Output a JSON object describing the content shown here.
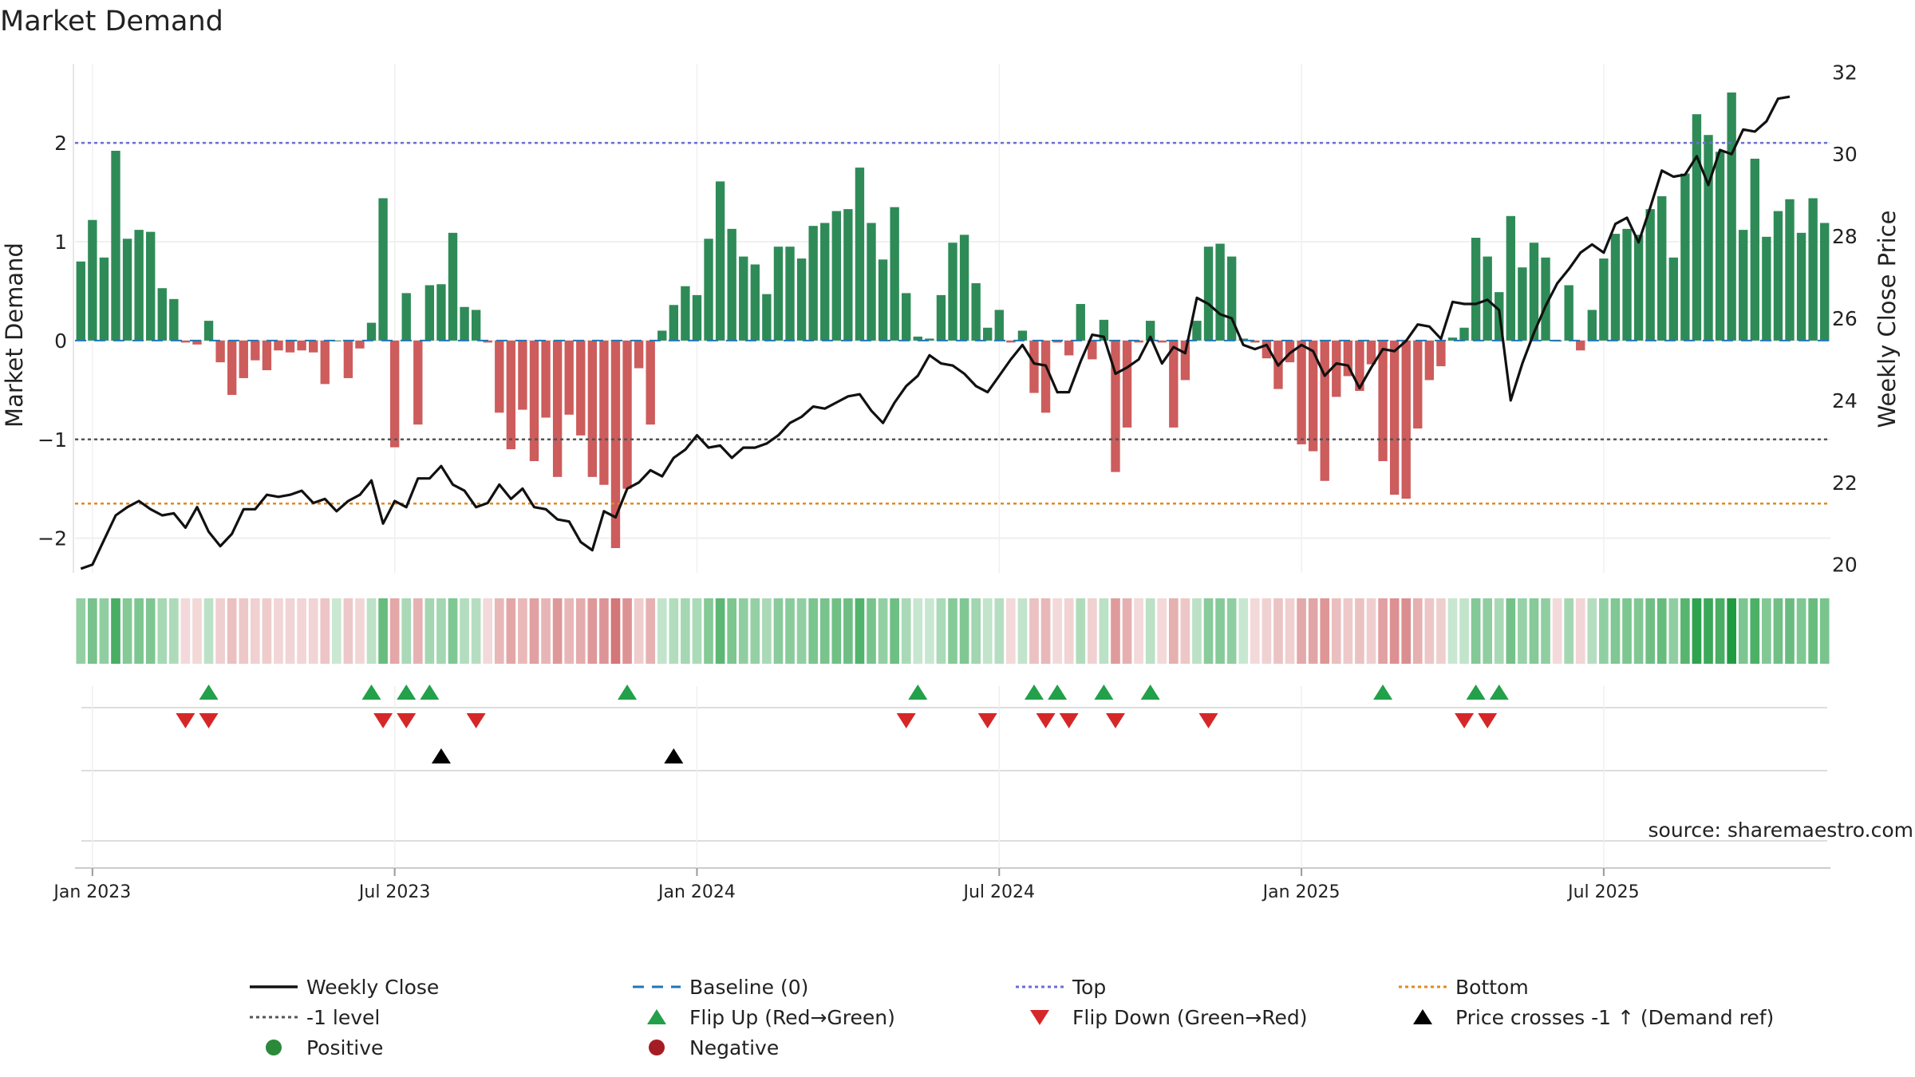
{
  "chart_data": {
    "type": "bar",
    "title": "Market Demand",
    "ylabel": "Market Demand",
    "y2label": "Weekly Close Price",
    "ylim": [
      -2.35,
      2.8
    ],
    "y2lim": [
      19.8,
      32.2
    ],
    "yticks": [
      2,
      1,
      0,
      -1,
      -2
    ],
    "ytick_labels": [
      "2",
      "1",
      "0",
      "−1",
      "−2"
    ],
    "y2ticks": [
      32,
      30,
      28,
      26,
      24,
      22,
      20
    ],
    "y2tick_labels": [
      "32",
      "30",
      "28",
      "26",
      "24",
      "22",
      "20"
    ],
    "reference_lines": {
      "top": 2,
      "minus_one": -1,
      "bottom": -1.65,
      "baseline": 0
    },
    "x_tick_labels": [
      "Jan 2023",
      "Jul 2023",
      "Jan 2024",
      "Jul 2024",
      "Jan 2025",
      "Jul 2025"
    ],
    "x_tick_weeks": [
      1,
      27,
      53,
      79,
      105,
      131
    ],
    "series": [
      {
        "name": "Market Demand",
        "values": [
          0.8,
          1.22,
          0.84,
          1.92,
          1.03,
          1.12,
          1.1,
          0.53,
          0.42,
          -0.02,
          -0.04,
          0.2,
          -0.22,
          -0.55,
          -0.38,
          -0.2,
          -0.3,
          -0.1,
          -0.12,
          -0.1,
          -0.12,
          -0.44,
          0,
          -0.38,
          -0.08,
          0.18,
          1.44,
          -1.08,
          0.48,
          -0.85,
          0.56,
          0.57,
          1.09,
          0.34,
          0.31,
          -0.02,
          -0.73,
          -1.1,
          -0.7,
          -1.22,
          -0.78,
          -1.38,
          -0.75,
          -0.96,
          -1.38,
          -1.46,
          -2.1,
          -1.5,
          -0.28,
          -0.85,
          0.1,
          0.36,
          0.55,
          0.46,
          1.03,
          1.61,
          1.13,
          0.85,
          0.77,
          0.47,
          0.95,
          0.95,
          0.83,
          1.16,
          1.19,
          1.31,
          1.33,
          1.75,
          1.19,
          0.82,
          1.35,
          0.48,
          0.04,
          0.02,
          0.46,
          0.99,
          1.07,
          0.58,
          0.13,
          0.31,
          -0.02,
          0.1,
          -0.53,
          -0.73,
          -0.02,
          -0.15,
          0.37,
          -0.19,
          0.21,
          -1.33,
          -0.88,
          -0.02,
          0.2,
          -0.02,
          -0.88,
          -0.4,
          0.2,
          0.95,
          0.98,
          0.85,
          0.02,
          -0.02,
          -0.18,
          -0.49,
          -0.22,
          -1.05,
          -1.12,
          -1.42,
          -0.57,
          -0.36,
          -0.51,
          -0.24,
          -1.22,
          -1.56,
          -1.6,
          -0.89,
          -0.4,
          -0.26,
          0.03,
          0.13,
          1.04,
          0.85,
          0.49,
          1.26,
          0.74,
          0.99,
          0.84,
          -0.01,
          0.56,
          -0.1,
          0.31,
          0.83,
          1.08,
          1.13,
          1.07,
          1.33,
          1.46,
          0.84,
          1.69,
          2.29,
          2.08,
          1.91,
          2.51,
          1.12,
          1.84,
          1.05,
          1.31,
          1.43,
          1.09,
          1.44,
          1.19
        ]
      },
      {
        "name": "Weekly Close",
        "values": [
          19.9,
          20.0,
          20.6,
          21.2,
          21.4,
          21.55,
          21.35,
          21.2,
          21.25,
          20.9,
          21.4,
          20.8,
          20.45,
          20.75,
          21.35,
          21.35,
          21.7,
          21.65,
          21.7,
          21.8,
          21.5,
          21.6,
          21.3,
          21.55,
          21.7,
          22.05,
          21.0,
          21.55,
          21.4,
          22.1,
          22.1,
          22.4,
          21.95,
          21.8,
          21.4,
          21.5,
          21.95,
          21.6,
          21.85,
          21.4,
          21.35,
          21.1,
          21.05,
          20.55,
          20.35,
          21.3,
          21.15,
          21.85,
          22.0,
          22.3,
          22.15,
          22.6,
          22.8,
          23.15,
          22.85,
          22.9,
          22.6,
          22.85,
          22.85,
          22.95,
          23.15,
          23.45,
          23.6,
          23.85,
          23.8,
          23.95,
          24.1,
          24.15,
          23.75,
          23.45,
          23.95,
          24.35,
          24.6,
          25.1,
          24.9,
          24.85,
          24.65,
          24.35,
          24.2,
          24.6,
          25.0,
          25.35,
          24.9,
          24.85,
          24.2,
          24.2,
          24.95,
          25.6,
          25.55,
          24.65,
          24.8,
          25.0,
          25.55,
          24.9,
          25.3,
          25.15,
          26.5,
          26.35,
          26.1,
          26.0,
          25.35,
          25.25,
          25.35,
          24.85,
          25.15,
          25.35,
          25.2,
          24.6,
          24.9,
          24.85,
          24.3,
          24.8,
          25.25,
          25.2,
          25.45,
          25.85,
          25.8,
          25.5,
          26.4,
          26.35,
          26.35,
          26.45,
          26.2,
          24.0,
          24.9,
          25.65,
          26.3,
          26.85,
          27.2,
          27.6,
          27.8,
          27.6,
          28.3,
          28.45,
          27.85,
          28.7,
          29.6,
          29.45,
          29.5,
          29.95,
          29.25,
          30.1,
          30.0,
          30.6,
          30.55,
          30.8,
          31.35,
          31.4
        ]
      }
    ],
    "flip_up_weeks": [
      11,
      25,
      28,
      30,
      47,
      72,
      82,
      84,
      88,
      92,
      112,
      120,
      122
    ],
    "flip_down_weeks": [
      9,
      11,
      26,
      28,
      34,
      71,
      78,
      83,
      85,
      89,
      97,
      119,
      121
    ],
    "price_cross_weeks": [
      31,
      51
    ],
    "legend": [
      {
        "label": "Weekly Close",
        "kind": "line",
        "color": "#111111"
      },
      {
        "label": "Baseline (0)",
        "kind": "dash",
        "color": "#1f77b4"
      },
      {
        "label": "Top",
        "kind": "dot",
        "color": "#6a6fd0"
      },
      {
        "label": "Bottom",
        "kind": "dot",
        "color": "#e08a1e"
      },
      {
        "label": "-1 level",
        "kind": "dot",
        "color": "#555555"
      },
      {
        "label": "Flip Up (Red→Green)",
        "kind": "tri-up",
        "color": "#22a04a"
      },
      {
        "label": "Flip Down (Green→Red)",
        "kind": "tri-down",
        "color": "#d62728"
      },
      {
        "label": "Price crosses -1 ↑ (Demand ref)",
        "kind": "tri-up",
        "color": "#000000"
      },
      {
        "label": "Positive",
        "kind": "circle",
        "color": "#2a8a3a"
      },
      {
        "label": "Negative",
        "kind": "circle",
        "color": "#a51d24"
      }
    ],
    "source": "source: sharemaestro.com",
    "colors": {
      "positive": "#2e8b57",
      "negative": "#cd5c5c",
      "top": "#6a6fd0",
      "bottom": "#e08a1e",
      "minus_one": "#555555",
      "baseline": "#1f77b4",
      "price": "#111111"
    }
  }
}
